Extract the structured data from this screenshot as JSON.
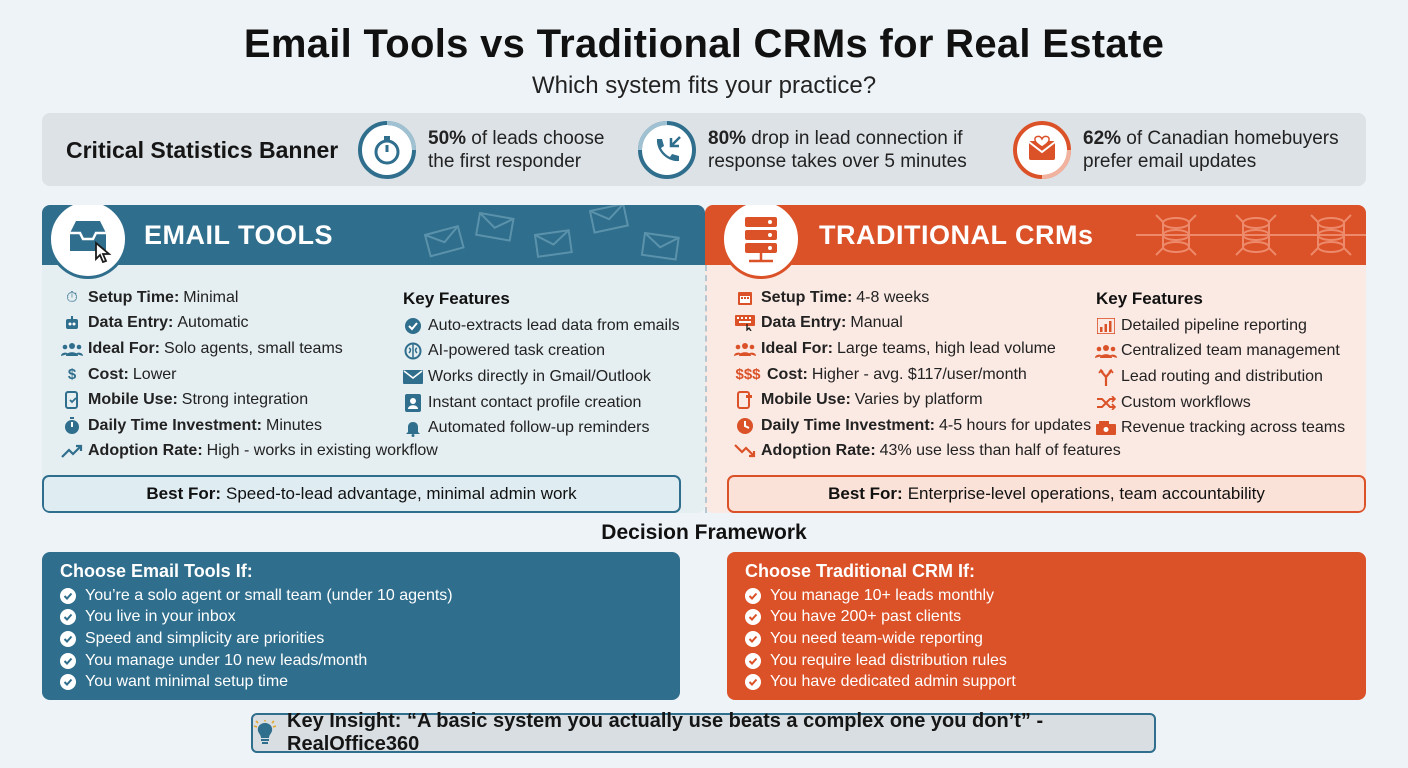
{
  "header": {
    "title": "Email Tools vs Traditional CRMs for Real Estate",
    "subtitle": "Which system fits your practice?"
  },
  "stats_banner": {
    "label": "Critical Statistics Banner",
    "items": [
      {
        "icon": "stopwatch-icon",
        "value": "50%",
        "line1": " of leads choose",
        "line2": "the first responder"
      },
      {
        "icon": "phone-call-icon",
        "value": "80%",
        "line1": " drop in lead connection if",
        "line2": "response takes over 5 minutes"
      },
      {
        "icon": "email-heart-icon",
        "value": "62%",
        "line1": " of Canadian homebuyers",
        "line2": "prefer email updates"
      }
    ]
  },
  "email_tools": {
    "title": "EMAIL TOOLS",
    "specs": [
      {
        "icon": "stopwatch-icon",
        "label": "Setup Time:",
        "value": " Minimal"
      },
      {
        "icon": "robot-icon",
        "label": "Data Entry:",
        "value": " Automatic"
      },
      {
        "icon": "people-icon",
        "label": "Ideal For:",
        "value": " Solo agents, small teams"
      },
      {
        "icon": "dollar-icon",
        "label": "Cost:",
        "value": " Lower"
      },
      {
        "icon": "mobile-icon",
        "label": "Mobile Use:",
        "value": " Strong integration"
      },
      {
        "icon": "timer-icon",
        "label": "Daily Time Investment:",
        "value": " Minutes"
      },
      {
        "icon": "trend-up-icon",
        "label": "Adoption Rate:",
        "value": " High - works in existing workflow"
      }
    ],
    "features_title": "Key Features",
    "features": [
      {
        "icon": "check-circle-icon",
        "text": "Auto-extracts lead data from emails"
      },
      {
        "icon": "brain-icon",
        "text": "AI-powered task creation"
      },
      {
        "icon": "envelope-icon",
        "text": "Works directly in Gmail/Outlook"
      },
      {
        "icon": "contact-card-icon",
        "text": "Instant contact profile creation"
      },
      {
        "icon": "bell-icon",
        "text": "Automated follow-up reminders"
      }
    ],
    "best_label": "Best For:",
    "best_value": " Speed-to-lead advantage, minimal admin work"
  },
  "traditional_crms": {
    "title": "TRADITIONAL CRMs",
    "specs": [
      {
        "icon": "calendar-icon",
        "label": "Setup Time:",
        "value": " 4-8 weeks"
      },
      {
        "icon": "keyboard-icon",
        "label": "Data Entry:",
        "value": " Manual"
      },
      {
        "icon": "people-icon",
        "label": "Ideal For:",
        "value": " Large teams, high lead volume"
      },
      {
        "icon": "dollar-triple-icon",
        "symbol": "$$$",
        "label": "Cost:",
        "value": " Higher - avg. $117/user/month"
      },
      {
        "icon": "mobile-icon",
        "label": "Mobile Use:",
        "value": " Varies by platform"
      },
      {
        "icon": "clock-icon",
        "label": "Daily Time Investment:",
        "value": " 4-5 hours for updates"
      },
      {
        "icon": "trend-down-icon",
        "label": "Adoption Rate:",
        "value": " 43% use less than half of features"
      }
    ],
    "features_title": "Key Features",
    "features": [
      {
        "icon": "bar-chart-icon",
        "text": "Detailed pipeline reporting"
      },
      {
        "icon": "team-icon",
        "text": "Centralized team management"
      },
      {
        "icon": "routing-icon",
        "text": "Lead routing and distribution"
      },
      {
        "icon": "shuffle-icon",
        "text": "Custom workflows"
      },
      {
        "icon": "cash-register-icon",
        "text": "Revenue tracking across teams"
      }
    ],
    "best_label": "Best For:",
    "best_value": " Enterprise-level operations, team accountability"
  },
  "decision": {
    "title": "Decision Framework",
    "email": {
      "title": "Choose Email Tools If:",
      "items": [
        "You’re a solo agent or small team (under 10 agents)",
        "You live in your inbox",
        "Speed and simplicity are priorities",
        "You manage under 10 new leads/month",
        "You want minimal setup time"
      ]
    },
    "crm": {
      "title": "Choose Traditional CRM If:",
      "items": [
        "You manage 10+ leads monthly",
        "You have 200+ past clients",
        "You need team-wide reporting",
        "You require lead distribution rules",
        "You have dedicated admin support"
      ]
    }
  },
  "insight": {
    "text": "Key Insight: “A basic system you actually use beats a complex one you don’t” - RealOffice360"
  },
  "colors": {
    "email_blue": "#2f6e8c",
    "crm_orange": "#db5128",
    "banner_gray": "#dde2e6"
  }
}
